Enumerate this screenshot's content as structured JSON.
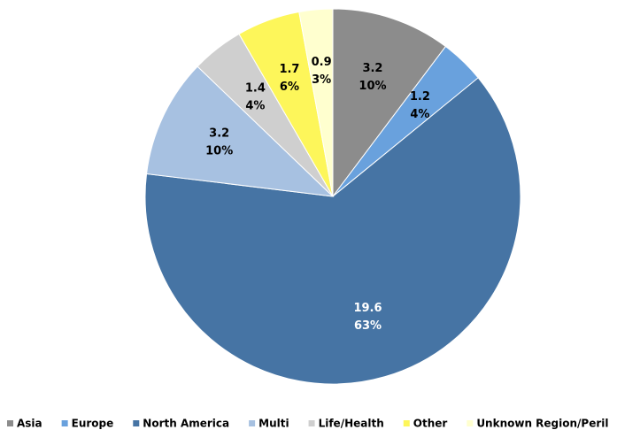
{
  "chart_data": {
    "type": "pie",
    "categories": [
      "Asia",
      "Europe",
      "North America",
      "Multi",
      "Life/Health",
      "Other",
      "Unknown Region/Peril"
    ],
    "values": [
      3.2,
      1.2,
      19.6,
      3.2,
      1.4,
      1.7,
      0.9
    ],
    "percentages": [
      10,
      4,
      63,
      10,
      4,
      6,
      3
    ],
    "percentage_labels": [
      "10%",
      "4%",
      "63%",
      "10%",
      "4%",
      "6%",
      "3%"
    ],
    "colors": [
      "#8c8c8c",
      "#69a1dd",
      "#4674a4",
      "#a7c1e1",
      "#cfcfcf",
      "#fdf65a",
      "#ffffcf"
    ],
    "label_colors": [
      "#000000",
      "#000000",
      "#ffffff",
      "#000000",
      "#000000",
      "#000000",
      "#000000"
    ],
    "legend": "bottom"
  }
}
